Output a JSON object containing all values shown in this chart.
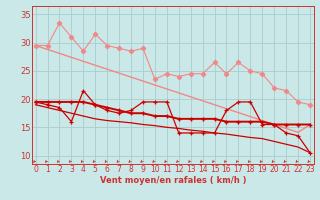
{
  "bg_color": "#cbe8e8",
  "grid_color": "#aacccc",
  "xlabel": "Vent moyen/en rafales ( km/h )",
  "x": [
    0,
    1,
    2,
    3,
    4,
    5,
    6,
    7,
    8,
    9,
    10,
    11,
    12,
    13,
    14,
    15,
    16,
    17,
    18,
    19,
    20,
    21,
    22,
    23
  ],
  "line_pink_jagged": [
    29.5,
    29.5,
    33.5,
    31.0,
    28.5,
    31.5,
    29.5,
    29.0,
    28.5,
    29.0,
    23.5,
    24.5,
    24.0,
    24.5,
    24.5,
    26.5,
    24.5,
    26.5,
    25.0,
    24.5,
    22.0,
    21.5,
    19.5,
    19.0
  ],
  "line_pink_trend": [
    29.5,
    28.8,
    28.1,
    27.4,
    26.7,
    26.0,
    25.3,
    24.6,
    23.9,
    23.2,
    22.5,
    21.8,
    21.1,
    20.4,
    19.7,
    19.0,
    18.3,
    17.6,
    16.9,
    16.2,
    15.5,
    14.8,
    14.1,
    15.5
  ],
  "line_dark_jagged": [
    19.5,
    19.0,
    18.5,
    16.0,
    21.5,
    19.0,
    18.0,
    17.5,
    18.0,
    19.5,
    19.5,
    19.5,
    14.0,
    14.0,
    14.0,
    14.0,
    18.0,
    19.5,
    19.5,
    15.5,
    15.5,
    14.0,
    13.5,
    10.5
  ],
  "line_dark_flat": [
    19.5,
    19.5,
    19.5,
    19.5,
    19.5,
    19.0,
    18.5,
    18.0,
    17.5,
    17.5,
    17.0,
    17.0,
    16.5,
    16.5,
    16.5,
    16.5,
    16.0,
    16.0,
    16.0,
    16.0,
    15.5,
    15.5,
    15.5,
    15.5
  ],
  "line_dark_trend": [
    19.0,
    18.5,
    18.0,
    17.5,
    17.0,
    16.5,
    16.2,
    16.0,
    15.8,
    15.5,
    15.3,
    15.0,
    14.8,
    14.5,
    14.3,
    14.0,
    13.8,
    13.5,
    13.2,
    13.0,
    12.5,
    12.0,
    11.5,
    10.5
  ],
  "color_light": "#f08888",
  "color_dark": "#cc0000",
  "ylim": [
    8.5,
    36.5
  ],
  "yticks": [
    10,
    15,
    20,
    25,
    30,
    35
  ],
  "xlim": [
    -0.3,
    23.3
  ],
  "tick_fontsize": 5.5,
  "xlabel_fontsize": 6.0,
  "arrow_color": "#cc3333"
}
